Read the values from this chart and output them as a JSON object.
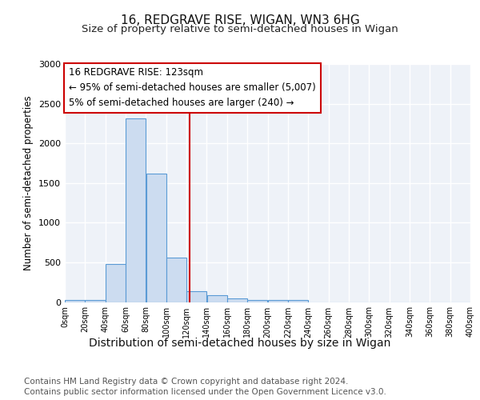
{
  "title1": "16, REDGRAVE RISE, WIGAN, WN3 6HG",
  "title2": "Size of property relative to semi-detached houses in Wigan",
  "xlabel": "Distribution of semi-detached houses by size in Wigan",
  "ylabel": "Number of semi-detached properties",
  "footnote1": "Contains HM Land Registry data © Crown copyright and database right 2024.",
  "footnote2": "Contains public sector information licensed under the Open Government Licence v3.0.",
  "bar_values": [
    25,
    30,
    480,
    2310,
    1620,
    560,
    140,
    85,
    45,
    25,
    30,
    25,
    0,
    0,
    0,
    0,
    0,
    0,
    0,
    0
  ],
  "bin_edges": [
    0,
    20,
    40,
    60,
    80,
    100,
    120,
    140,
    160,
    180,
    200,
    220,
    240,
    260,
    280,
    300,
    320,
    340,
    360,
    380,
    400
  ],
  "x_tick_labels": [
    "0sqm",
    "20sqm",
    "40sqm",
    "60sqm",
    "80sqm",
    "100sqm",
    "120sqm",
    "140sqm",
    "160sqm",
    "180sqm",
    "200sqm",
    "220sqm",
    "240sqm",
    "260sqm",
    "280sqm",
    "300sqm",
    "320sqm",
    "340sqm",
    "360sqm",
    "380sqm",
    "400sqm"
  ],
  "bar_color": "#ccdcf0",
  "bar_edge_color": "#5b9bd5",
  "vline_x": 123,
  "vline_color": "#cc0000",
  "annotation_title": "16 REDGRAVE RISE: 123sqm",
  "annotation_line1": "← 95% of semi-detached houses are smaller (5,007)",
  "annotation_line2": "5% of semi-detached houses are larger (240) →",
  "annotation_box_color": "#cc0000",
  "ylim": [
    0,
    3000
  ],
  "yticks": [
    0,
    500,
    1000,
    1500,
    2000,
    2500,
    3000
  ],
  "bg_color": "#eef2f8",
  "grid_color": "#ffffff",
  "title1_fontsize": 11,
  "title2_fontsize": 9.5,
  "xlabel_fontsize": 10,
  "ylabel_fontsize": 8.5,
  "annotation_fontsize": 8.5,
  "footnote_fontsize": 7.5
}
